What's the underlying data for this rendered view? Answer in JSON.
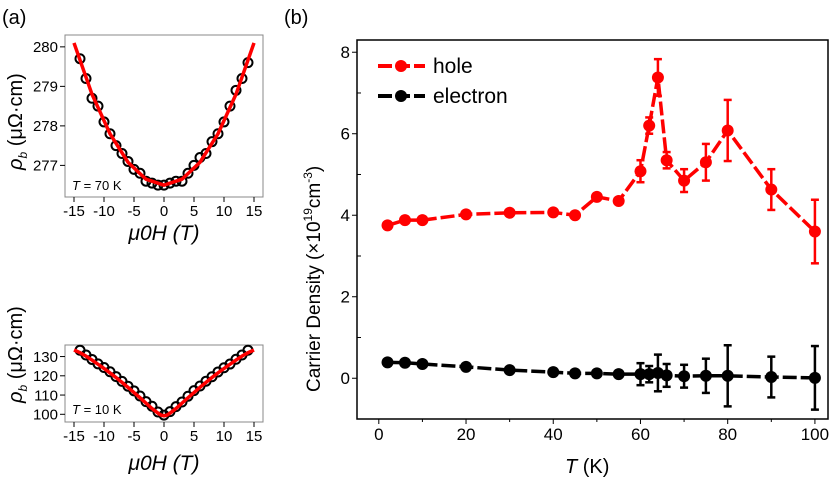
{
  "colors": {
    "hole": "#ff0000",
    "electron": "#000000",
    "fit": "#ff0000"
  },
  "chart_data": [
    {
      "panel": "(a)",
      "type": "scatter",
      "subtitle": "T = 70 K",
      "annotation_T": "T",
      "annotation_rest": " = 70 K",
      "xlabel": "μ0H (T)",
      "ylabel": "ρb (μΩ·cm)",
      "xlim": [
        -16.5,
        16.5
      ],
      "ylim": [
        276.2,
        280.3
      ],
      "xticks": [
        -15,
        -10,
        -5,
        0,
        5,
        10,
        15
      ],
      "yticks": [
        277,
        278,
        279,
        280
      ],
      "x": [
        -14,
        -13,
        -12,
        -11,
        -10,
        -9,
        -8,
        -7,
        -6,
        -5,
        -4,
        -3,
        -2,
        -1,
        0,
        1,
        2,
        3,
        4,
        5,
        6,
        7,
        8,
        9,
        10,
        11,
        12,
        13,
        14
      ],
      "y": [
        279.7,
        279.2,
        278.7,
        278.5,
        278.1,
        277.8,
        277.5,
        277.3,
        277.1,
        276.9,
        276.8,
        276.6,
        276.55,
        276.5,
        276.5,
        276.55,
        276.6,
        276.6,
        276.8,
        277.0,
        277.2,
        277.3,
        277.6,
        277.8,
        278.1,
        278.5,
        278.9,
        279.2,
        279.6
      ],
      "fit": {
        "x": [
          -15,
          -12,
          -9,
          -6,
          -3,
          0,
          3,
          6,
          9,
          12,
          15
        ],
        "y": [
          280.1,
          278.8,
          277.8,
          277.08,
          276.65,
          276.5,
          276.65,
          277.08,
          277.8,
          278.8,
          280.1
        ]
      }
    },
    {
      "panel": "",
      "type": "scatter",
      "annotation_T": "T",
      "annotation_rest": " = 10 K",
      "xlabel": "μ0H (T)",
      "ylabel": "ρb (μΩ·cm)",
      "xlim": [
        -16.5,
        16.5
      ],
      "ylim": [
        96,
        136
      ],
      "xticks": [
        -15,
        -10,
        -5,
        0,
        5,
        10,
        15
      ],
      "yticks": [
        100,
        110,
        120,
        130
      ],
      "x": [
        -14,
        -13,
        -12,
        -11,
        -10,
        -9,
        -8,
        -7,
        -6,
        -5,
        -4,
        -3,
        -2,
        -1,
        0,
        1,
        2,
        3,
        4,
        5,
        6,
        7,
        8,
        9,
        10,
        11,
        12,
        13,
        14
      ],
      "y": [
        133.3,
        130.8,
        128.5,
        126.2,
        124.3,
        122.1,
        119.6,
        117.1,
        114.6,
        112.2,
        109.5,
        106.6,
        104.2,
        101.2,
        99.6,
        101.4,
        104.0,
        106.4,
        109.4,
        112.3,
        114.7,
        117.2,
        119.5,
        122.0,
        124.2,
        126.1,
        128.6,
        130.8,
        133.3
      ],
      "fit": {
        "x": [
          -15,
          -14,
          -13,
          -12,
          -11,
          -10,
          -9,
          -8,
          -7,
          -6,
          -5,
          -4,
          -3,
          -2,
          -1,
          -0.5,
          0,
          0.5,
          1,
          2,
          3,
          4,
          5,
          6,
          7,
          8,
          9,
          10,
          11,
          12,
          13,
          14,
          15
        ],
        "y": [
          133.4,
          132,
          130.2,
          128.2,
          126,
          123.8,
          121.5,
          119.1,
          116.6,
          114,
          111.3,
          108.6,
          105.8,
          103,
          100.6,
          99.6,
          99.2,
          99.6,
          100.6,
          103,
          105.8,
          108.6,
          111.3,
          114,
          116.6,
          119.1,
          121.5,
          123.8,
          126,
          128.2,
          130.2,
          132,
          133.4
        ]
      }
    },
    {
      "panel": "(b)",
      "type": "line",
      "xlabel_italic": "T",
      "xlabel_rest": " (K)",
      "ylabel": "Carrier Density (×10",
      "ylabel_sup1": "19",
      "ylabel_mid": "cm",
      "ylabel_sup2": "-3",
      "ylabel_end": ")",
      "xlim": [
        -5,
        103
      ],
      "ylim": [
        -1,
        8.3
      ],
      "xticks": [
        0,
        20,
        40,
        60,
        80,
        100
      ],
      "yticks": [
        0,
        2,
        4,
        6,
        8
      ],
      "legend": "top-left",
      "series": [
        {
          "name": "hole",
          "x": [
            2,
            6,
            10,
            20,
            30,
            40,
            45,
            50,
            55,
            60,
            62,
            64,
            66,
            70,
            75,
            80,
            90,
            100
          ],
          "y": [
            3.75,
            3.88,
            3.88,
            4.02,
            4.06,
            4.07,
            4.0,
            4.45,
            4.35,
            5.08,
            6.2,
            7.38,
            5.35,
            4.85,
            5.3,
            6.08,
            4.63,
            3.6
          ],
          "err": [
            0,
            0,
            0,
            0,
            0,
            0,
            0,
            0,
            0,
            0.27,
            0.2,
            0.45,
            0.2,
            0.28,
            0.45,
            0.75,
            0.5,
            0.78
          ]
        },
        {
          "name": "electron",
          "x": [
            2,
            6,
            10,
            20,
            30,
            40,
            45,
            50,
            55,
            60,
            62,
            64,
            66,
            70,
            75,
            80,
            90,
            100
          ],
          "y": [
            0.39,
            0.38,
            0.35,
            0.28,
            0.2,
            0.15,
            0.12,
            0.12,
            0.1,
            0.1,
            0.1,
            0.13,
            0.07,
            0.05,
            0.06,
            0.06,
            0.03,
            0.01
          ],
          "err": [
            0,
            0,
            0,
            0,
            0,
            0,
            0,
            0,
            0,
            0.27,
            0.2,
            0.45,
            0.28,
            0.28,
            0.42,
            0.75,
            0.5,
            0.78
          ]
        }
      ]
    }
  ]
}
